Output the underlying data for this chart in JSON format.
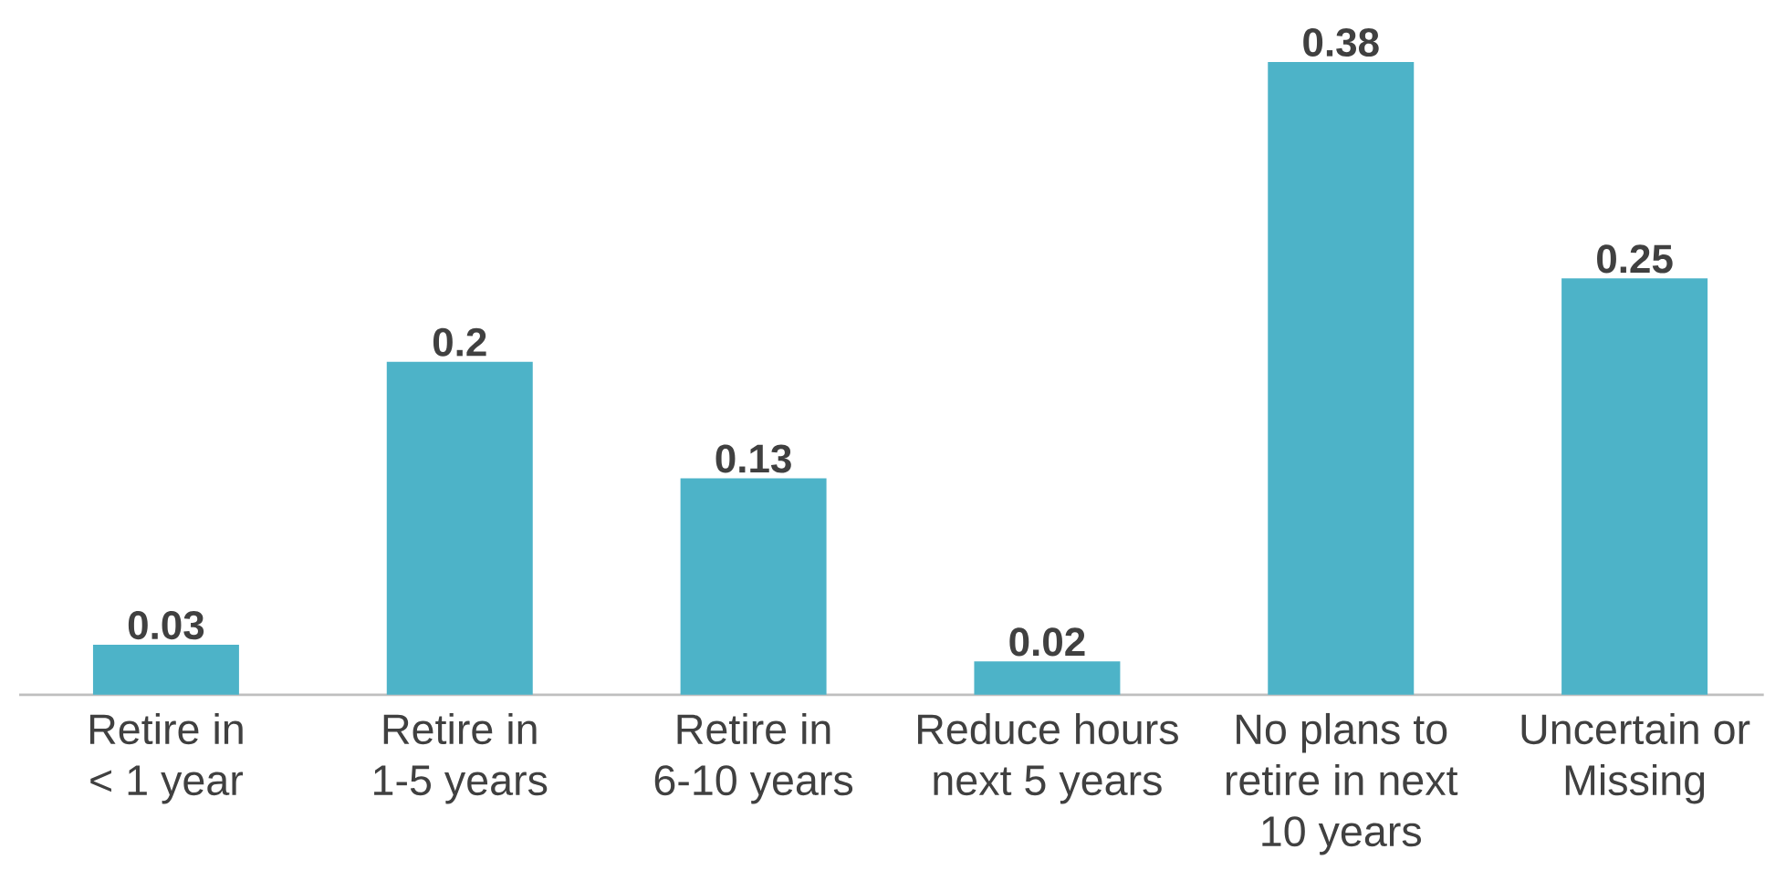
{
  "chart_data": {
    "type": "bar",
    "categories": [
      "Retire in\n< 1 year",
      "Retire in\n1-5 years",
      "Retire in\n6-10 years",
      "Reduce hours\nnext 5 years",
      "No plans to\nretire in next\n10 years",
      "Uncertain or\nMissing"
    ],
    "values": [
      0.03,
      0.2,
      0.13,
      0.02,
      0.38,
      0.25
    ],
    "color": "#4db3c8",
    "data_labels": true
  }
}
